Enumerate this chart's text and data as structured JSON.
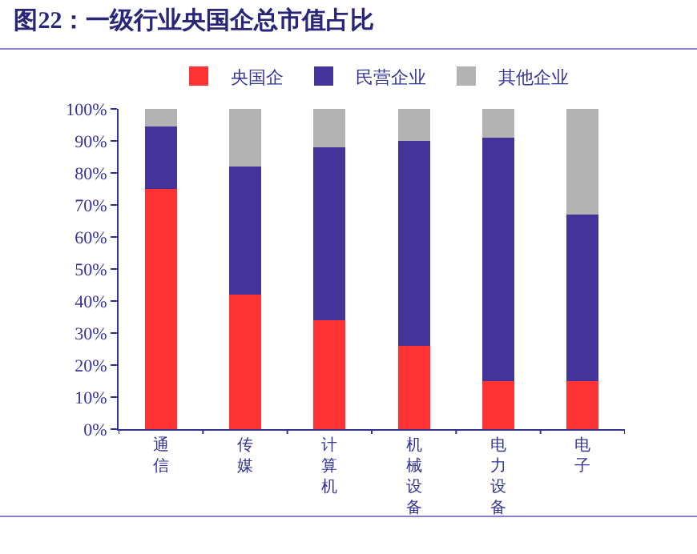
{
  "chart_data": {
    "type": "bar",
    "title": "图22：一级行业央国企总市值占比",
    "categories": [
      "通信",
      "传媒",
      "计算机",
      "机械设备",
      "电力设备",
      "电子"
    ],
    "stacked": true,
    "series": [
      {
        "name": "央国企",
        "color": "#ff3333",
        "values": [
          75,
          42,
          34,
          26,
          15,
          15
        ]
      },
      {
        "name": "民营企业",
        "color": "#443399",
        "values": [
          19.5,
          40,
          54,
          64,
          76,
          52
        ]
      },
      {
        "name": "其他企业",
        "color": "#b3b3b3",
        "values": [
          5.5,
          18,
          12,
          10,
          9,
          33
        ]
      }
    ],
    "ylim": [
      0,
      100
    ],
    "yticks": [
      {
        "value": 0,
        "label": "0%"
      },
      {
        "value": 10,
        "label": "10%"
      },
      {
        "value": 20,
        "label": "20%"
      },
      {
        "value": 30,
        "label": "30%"
      },
      {
        "value": 40,
        "label": "40%"
      },
      {
        "value": 50,
        "label": "50%"
      },
      {
        "value": 60,
        "label": "60%"
      },
      {
        "value": 70,
        "label": "70%"
      },
      {
        "value": 80,
        "label": "80%"
      },
      {
        "value": 90,
        "label": "90%"
      },
      {
        "value": 100,
        "label": "100%"
      }
    ],
    "grid": false,
    "legend": "top"
  }
}
